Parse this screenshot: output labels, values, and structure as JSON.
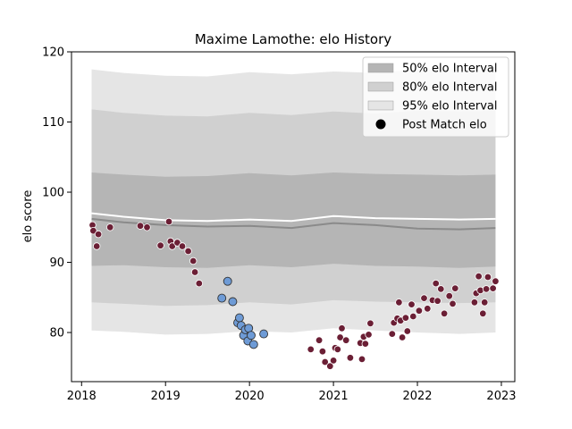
{
  "chart_data": {
    "type": "scatter",
    "title": "Maxime Lamothe: elo History",
    "xlabel": "",
    "ylabel": "elo score",
    "xlim": [
      2017.88,
      2023.16
    ],
    "ylim": [
      73,
      120
    ],
    "x_ticks": [
      2018,
      2019,
      2020,
      2021,
      2022,
      2023
    ],
    "y_ticks": [
      80,
      90,
      100,
      110,
      120
    ],
    "grid": false,
    "legend_position": "top-right",
    "colors": {
      "band_95": "#e5e5e5",
      "band_80": "#d0d0d0",
      "band_50": "#b5b5b5",
      "median_line": "#8a8a8a",
      "mean_line": "#ffffff",
      "post_match_points": "#6b1f35",
      "highlight_points": "#6e9bd6",
      "point_edge": "#333333"
    },
    "legend": [
      {
        "label": "50% elo Interval",
        "kind": "band_50"
      },
      {
        "label": "80% elo Interval",
        "kind": "band_80"
      },
      {
        "label": "95% elo Interval",
        "kind": "band_95"
      },
      {
        "label": "Post Match elo",
        "kind": "marker"
      }
    ],
    "bands": {
      "x": [
        2018.12,
        2018.5,
        2019.0,
        2019.5,
        2020.0,
        2020.5,
        2021.0,
        2021.5,
        2022.0,
        2022.5,
        2022.93
      ],
      "p95_upper": [
        117.5,
        117.0,
        116.6,
        116.5,
        117.1,
        116.8,
        117.2,
        117.0,
        117.5,
        117.4,
        117.4
      ],
      "p80_upper": [
        111.8,
        111.3,
        110.9,
        110.8,
        111.3,
        111.0,
        111.5,
        111.2,
        111.6,
        111.5,
        111.6
      ],
      "p50_upper": [
        102.8,
        102.5,
        102.2,
        102.3,
        102.7,
        102.4,
        102.8,
        102.6,
        102.5,
        102.4,
        102.5
      ],
      "p50_lower": [
        89.5,
        89.6,
        89.3,
        89.2,
        89.6,
        89.3,
        89.8,
        89.5,
        89.4,
        89.2,
        89.4
      ],
      "p80_lower": [
        84.3,
        84.1,
        83.8,
        83.9,
        84.3,
        84.0,
        84.6,
        84.4,
        84.3,
        84.2,
        84.3
      ],
      "p95_lower": [
        80.3,
        80.1,
        79.7,
        79.8,
        80.2,
        80.0,
        80.6,
        80.3,
        80.0,
        79.8,
        80.0
      ],
      "median": [
        96.2,
        95.7,
        95.3,
        95.1,
        95.2,
        94.9,
        95.6,
        95.3,
        94.8,
        94.7,
        94.9
      ],
      "mean": [
        97.0,
        96.5,
        96.0,
        95.9,
        96.1,
        95.9,
        96.6,
        96.3,
        96.2,
        96.1,
        96.2
      ]
    },
    "series": [
      {
        "name": "Post Match elo",
        "points": [
          [
            2018.13,
            95.3
          ],
          [
            2018.14,
            94.5
          ],
          [
            2018.18,
            92.3
          ],
          [
            2018.2,
            94.0
          ],
          [
            2018.34,
            95.0
          ],
          [
            2018.7,
            95.2
          ],
          [
            2018.78,
            95.0
          ],
          [
            2018.94,
            92.4
          ],
          [
            2019.04,
            95.8
          ],
          [
            2019.06,
            93.0
          ],
          [
            2019.08,
            92.3
          ],
          [
            2019.14,
            92.8
          ],
          [
            2019.2,
            92.3
          ],
          [
            2019.27,
            91.6
          ],
          [
            2019.33,
            90.2
          ],
          [
            2019.35,
            88.6
          ],
          [
            2019.4,
            87.0
          ],
          [
            2020.73,
            77.6
          ],
          [
            2020.83,
            78.9
          ],
          [
            2020.87,
            77.3
          ],
          [
            2020.9,
            75.8
          ],
          [
            2020.96,
            75.2
          ],
          [
            2021.0,
            76.0
          ],
          [
            2021.02,
            77.8
          ],
          [
            2021.05,
            77.6
          ],
          [
            2021.08,
            79.3
          ],
          [
            2021.1,
            80.6
          ],
          [
            2021.15,
            78.9
          ],
          [
            2021.2,
            76.4
          ],
          [
            2021.32,
            78.5
          ],
          [
            2021.34,
            76.2
          ],
          [
            2021.36,
            79.4
          ],
          [
            2021.38,
            78.4
          ],
          [
            2021.42,
            79.7
          ],
          [
            2021.44,
            81.3
          ],
          [
            2021.7,
            79.8
          ],
          [
            2021.72,
            81.4
          ],
          [
            2021.76,
            82.0
          ],
          [
            2021.78,
            84.3
          ],
          [
            2021.8,
            81.7
          ],
          [
            2021.82,
            79.3
          ],
          [
            2021.86,
            82.1
          ],
          [
            2021.88,
            80.2
          ],
          [
            2021.93,
            84.0
          ],
          [
            2021.95,
            82.3
          ],
          [
            2022.02,
            83.1
          ],
          [
            2022.08,
            84.9
          ],
          [
            2022.12,
            83.4
          ],
          [
            2022.18,
            84.6
          ],
          [
            2022.22,
            87.0
          ],
          [
            2022.24,
            84.5
          ],
          [
            2022.28,
            86.2
          ],
          [
            2022.32,
            82.7
          ],
          [
            2022.38,
            85.2
          ],
          [
            2022.42,
            84.1
          ],
          [
            2022.45,
            86.3
          ],
          [
            2022.68,
            84.3
          ],
          [
            2022.7,
            85.6
          ],
          [
            2022.73,
            88.0
          ],
          [
            2022.75,
            86.0
          ],
          [
            2022.78,
            82.7
          ],
          [
            2022.8,
            84.3
          ],
          [
            2022.82,
            86.2
          ],
          [
            2022.84,
            87.9
          ],
          [
            2022.9,
            86.3
          ],
          [
            2022.93,
            87.3
          ]
        ]
      },
      {
        "name": "",
        "points": [
          [
            2019.67,
            84.9
          ],
          [
            2019.74,
            87.3
          ],
          [
            2019.8,
            84.4
          ],
          [
            2019.86,
            81.4
          ],
          [
            2019.88,
            82.1
          ],
          [
            2019.9,
            81.0
          ],
          [
            2019.93,
            79.6
          ],
          [
            2019.95,
            80.4
          ],
          [
            2019.98,
            78.8
          ],
          [
            2019.99,
            80.6
          ],
          [
            2020.02,
            79.6
          ],
          [
            2020.05,
            78.3
          ],
          [
            2020.17,
            79.8
          ]
        ]
      }
    ]
  }
}
